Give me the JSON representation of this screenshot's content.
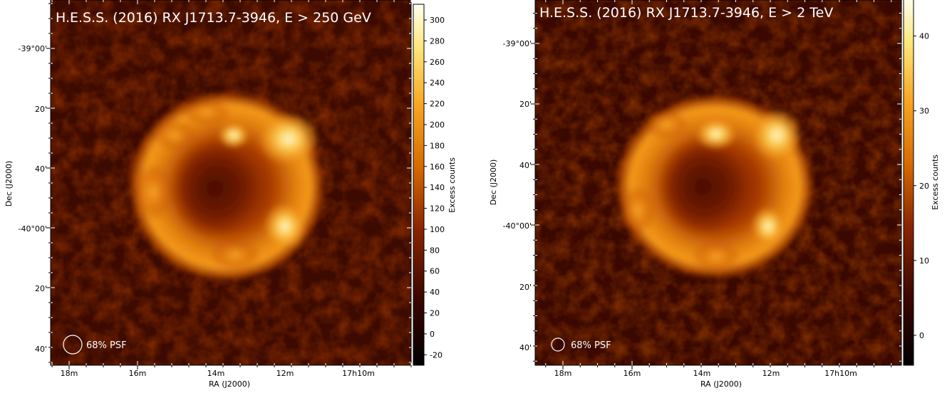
{
  "chart_data": [
    {
      "type": "heatmap",
      "title": "H.E.S.S. (2016) RX J1713.7-3946, E > 250 GeV",
      "xlabel": "RA (J2000)",
      "ylabel": "Dec (J2000)",
      "x_ticks": [
        "18m",
        "16m",
        "14m",
        "12m",
        "17h10m"
      ],
      "y_ticks": [
        "-39°00'",
        "20'",
        "40'",
        "-40°00'",
        "20'",
        "40'"
      ],
      "colorbar": {
        "label": "Excess counts",
        "range": [
          -30,
          315
        ],
        "ticks": [
          300,
          280,
          260,
          240,
          220,
          200,
          180,
          160,
          140,
          120,
          100,
          80,
          60,
          40,
          20,
          0,
          -20
        ]
      },
      "psf_label": "68% PSF",
      "colormap": "afmhot"
    },
    {
      "type": "heatmap",
      "title": "H.E.S.S. (2016) RX J1713.7-3946, E > 2 TeV",
      "xlabel": "RA (J2000)",
      "ylabel": "Dec (J2000)",
      "x_ticks": [
        "18m",
        "16m",
        "14m",
        "12m",
        "17h10m"
      ],
      "y_ticks": [
        "-39°00'",
        "20'",
        "40'",
        "-40°00'",
        "20'",
        "40'"
      ],
      "colorbar": {
        "label": "Excess counts",
        "range": [
          -4,
          45
        ],
        "ticks": [
          40,
          30,
          20,
          10,
          0
        ]
      },
      "psf_label": "68% PSF",
      "colormap": "afmhot"
    }
  ]
}
